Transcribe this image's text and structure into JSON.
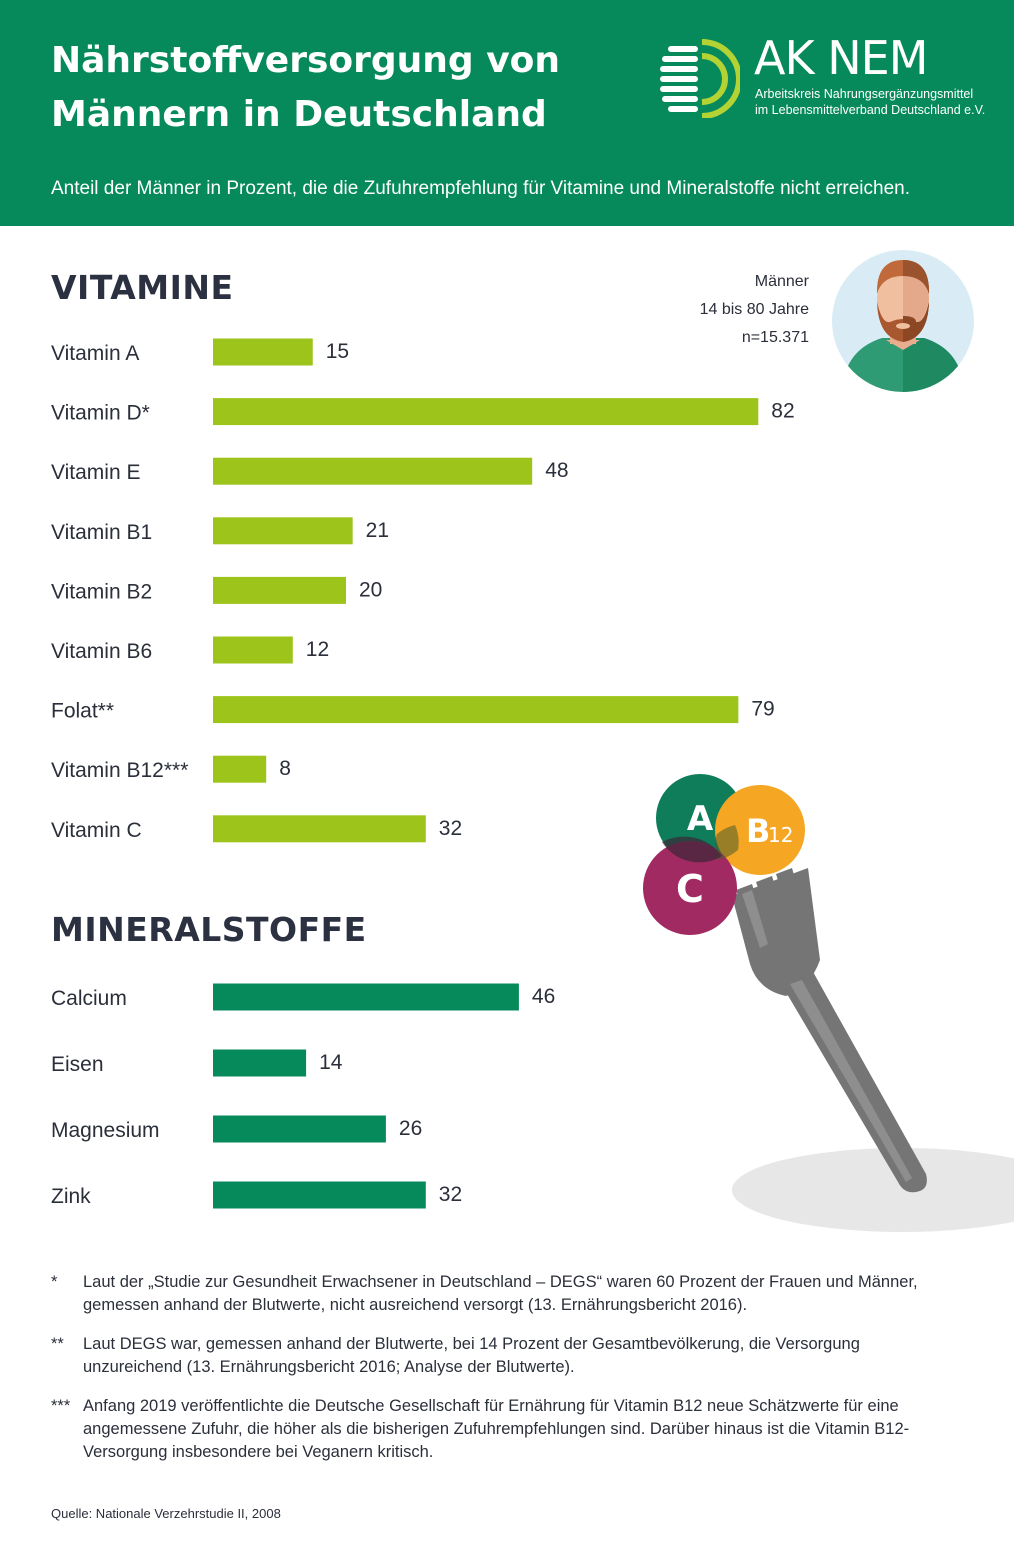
{
  "header": {
    "title_line1": "Nährstoffversorgung von",
    "title_line2": "Männern in Deutschland",
    "subtitle": "Anteil der Männer in Prozent, die die Zufuhrempfehlung für Vitamine und Mineralstoffe nicht erreichen.",
    "background_color": "#068a5b"
  },
  "logo": {
    "name": "AK NEM",
    "line1": "Arbeitskreis Nahrungsergänzungsmittel",
    "line2": "im Lebensmittelverband Deutschland e.V.",
    "icon": "aknem-logo-icon"
  },
  "person": {
    "line1": "Männer",
    "line2": "14 bis 80 Jahre",
    "line3": "n=15.371",
    "icon": "man-avatar-icon"
  },
  "illustration": {
    "icon": "fork-with-vitamins-icon",
    "ball_a": "A",
    "ball_b": "B",
    "ball_b_sub": "12",
    "ball_c": "C"
  },
  "chart_data": [
    {
      "type": "bar",
      "orientation": "horizontal",
      "title": "VITAMINE",
      "categories": [
        "Vitamin A",
        "Vitamin D*",
        "Vitamin E",
        "Vitamin B1",
        "Vitamin B2",
        "Vitamin B6",
        "Folat**",
        "Vitamin B12***",
        "Vitamin C"
      ],
      "values": [
        15,
        82,
        48,
        21,
        20,
        12,
        79,
        8,
        32
      ],
      "color": "#9dc41a",
      "data_labels": true,
      "grid": false,
      "xlim": [
        0,
        100
      ]
    },
    {
      "type": "bar",
      "orientation": "horizontal",
      "title": "MINERALSTOFFE",
      "categories": [
        "Calcium",
        "Eisen",
        "Magnesium",
        "Zink"
      ],
      "values": [
        46,
        14,
        26,
        32
      ],
      "color": "#068a5b",
      "data_labels": true,
      "grid": false,
      "xlim": [
        0,
        100
      ]
    }
  ],
  "footnotes": [
    {
      "mark": "*",
      "text": "Laut der „Studie zur Gesundheit Erwachsener in Deutschland – DEGS“ waren 60 Prozent der Frauen und Männer, gemessen anhand der Blutwerte, nicht ausreichend versorgt (13. Ernährungsbericht 2016)."
    },
    {
      "mark": "**",
      "text": "Laut DEGS war, gemessen anhand der Blutwerte, bei 14 Prozent der Gesamtbevölkerung, die Versorgung unzureichend (13. Ernährungsbericht 2016; Analyse der Blutwerte)."
    },
    {
      "mark": "***",
      "text": "Anfang 2019 veröffentlichte die Deutsche Gesellschaft für Ernährung für Vitamin B12 neue Schätzwerte für eine angemessene Zufuhr, die höher als die bisherigen Zufuhrempfehlungen sind. Darüber hinaus ist die Vitamin B12-Versorgung insbesondere bei Veganern kritisch."
    }
  ],
  "source": "Quelle: Nationale Verzehrstudie II, 2008"
}
